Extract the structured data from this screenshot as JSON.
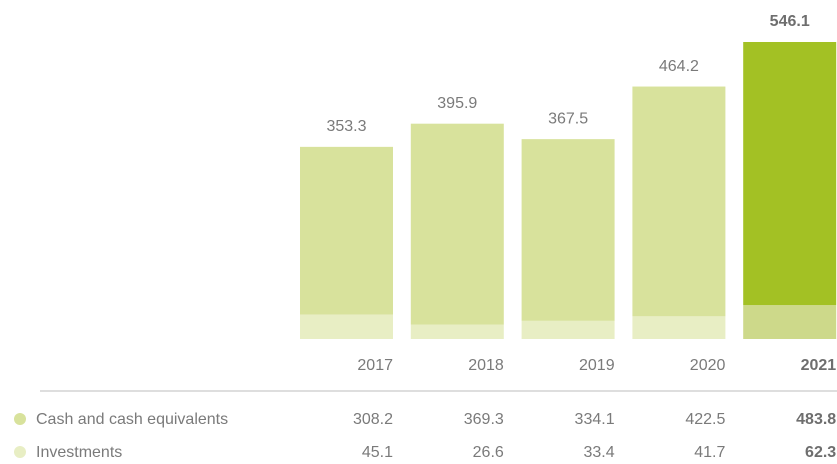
{
  "chart_data": {
    "type": "stacked_bar",
    "categories": [
      "2017",
      "2018",
      "2019",
      "2020",
      "2021"
    ],
    "highlight": "2021",
    "totals": [
      353.3,
      395.9,
      367.5,
      464.2,
      546.1
    ],
    "series": [
      {
        "name": "Cash and cash equivalents",
        "color": "#d8e29c",
        "highlight_color": "#a3c124",
        "values": [
          308.2,
          369.3,
          334.1,
          422.5,
          483.8
        ]
      },
      {
        "name": "Investments",
        "color": "#e8eec4",
        "highlight_color": "#cdd98a",
        "values": [
          45.1,
          26.6,
          33.4,
          41.7,
          62.3
        ]
      }
    ]
  }
}
